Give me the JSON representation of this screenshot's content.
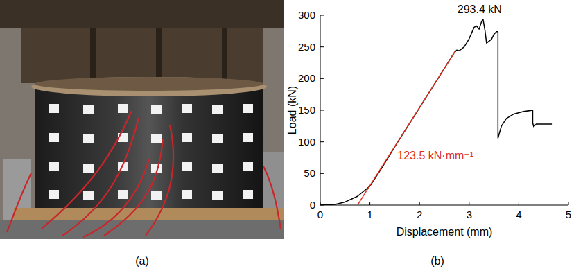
{
  "photo": {
    "caption": "(a)"
  },
  "chart_data": {
    "type": "line",
    "caption": "(b)",
    "x_label": "Displacement (mm)",
    "y_label": "Load (kN)",
    "xlim": [
      0,
      5
    ],
    "xticks": [
      0,
      1,
      2,
      3,
      4,
      5
    ],
    "ylim": [
      0,
      300
    ],
    "yticks": [
      0,
      50,
      100,
      150,
      200,
      250,
      300
    ],
    "grid": false,
    "annotations": [
      "293.4 kN",
      "123.5 kN·mm⁻¹"
    ],
    "series": [
      {
        "color": "#000000",
        "line_style": "solid",
        "x": [
          0,
          0.3,
          0.5,
          0.75,
          1.0,
          1.25,
          1.5,
          1.75,
          2.0,
          2.25,
          2.5,
          2.7,
          2.75,
          2.8,
          2.9,
          3.0,
          3.1,
          3.15,
          3.2,
          3.25,
          3.28,
          3.32,
          3.35,
          3.45,
          3.5,
          3.55,
          3.58,
          3.58,
          3.65,
          3.75,
          3.9,
          4.1,
          4.28,
          4.28,
          4.3,
          4.35,
          4.4,
          4.68
        ],
        "values": [
          0,
          1,
          5,
          14,
          30,
          60,
          92,
          123,
          154,
          185,
          216,
          241,
          245,
          244,
          250,
          263,
          281,
          283,
          278,
          290,
          293.4,
          275,
          256,
          262,
          270,
          274,
          274,
          106,
          125,
          137,
          144,
          148,
          150,
          130,
          124,
          128,
          128,
          128
        ]
      },
      {
        "color": "#e0301e",
        "line_style": "solid",
        "x": [
          0.75,
          2.72
        ],
        "values": [
          0,
          243.3
        ]
      }
    ]
  }
}
